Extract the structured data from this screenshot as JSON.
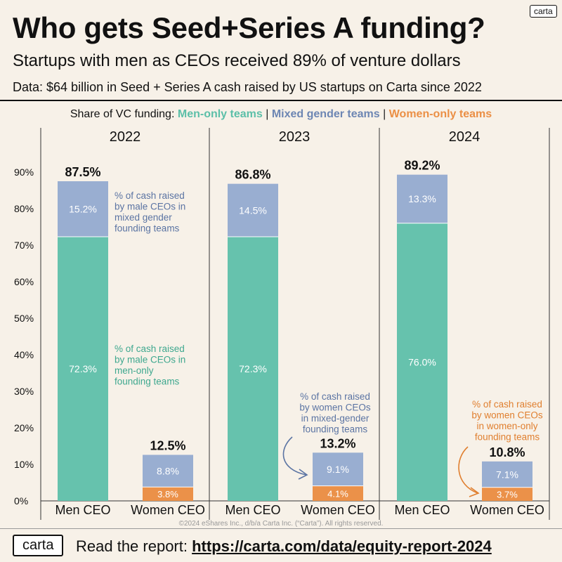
{
  "header": {
    "logo_small": "carta",
    "title": "Who gets Seed+Series A funding?",
    "subtitle": "Startups with men as CEOs received 89% of venture dollars",
    "data_note": "Data: $64 billion in Seed + Series A cash raised by US startups on Carta since 2022"
  },
  "legend": {
    "prefix": "Share of VC funding:",
    "men_only": "Men-only teams",
    "sep1": "|",
    "mixed": "Mixed gender teams",
    "sep2": "|",
    "women_only": "Women-only teams"
  },
  "colors": {
    "men_only": "#66c2ad",
    "mixed": "#99aed1",
    "women_only": "#eb9149",
    "annotation_men": "#3fa88f",
    "annotation_mixed": "#5b74a3",
    "annotation_women": "#e07f2f"
  },
  "chart_data": {
    "type": "bar",
    "stacked": true,
    "ylim": [
      0,
      90
    ],
    "yticks": [
      "0%",
      "10%",
      "20%",
      "30%",
      "40%",
      "50%",
      "60%",
      "70%",
      "80%",
      "90%"
    ],
    "yticks_values": [
      0,
      10,
      20,
      30,
      40,
      50,
      60,
      70,
      80,
      90
    ],
    "grid": false,
    "legend_position": "top-center",
    "panels": [
      {
        "year": "2022",
        "bars": [
          {
            "category": "Men CEO",
            "total_label": "87.5%",
            "segments": [
              {
                "series": "men_only",
                "value": 72.3,
                "label": "72.3%"
              },
              {
                "series": "mixed",
                "value": 15.2,
                "label": "15.2%"
              }
            ]
          },
          {
            "category": "Women CEO",
            "total_label": "12.5%",
            "segments": [
              {
                "series": "women_only",
                "value": 3.8,
                "label": "3.8%"
              },
              {
                "series": "mixed",
                "value": 8.8,
                "label": "8.8%"
              }
            ]
          }
        ]
      },
      {
        "year": "2023",
        "bars": [
          {
            "category": "Men CEO",
            "total_label": "86.8%",
            "segments": [
              {
                "series": "men_only",
                "value": 72.3,
                "label": "72.3%"
              },
              {
                "series": "mixed",
                "value": 14.5,
                "label": "14.5%"
              }
            ]
          },
          {
            "category": "Women CEO",
            "total_label": "13.2%",
            "segments": [
              {
                "series": "women_only",
                "value": 4.1,
                "label": "4.1%"
              },
              {
                "series": "mixed",
                "value": 9.1,
                "label": "9.1%"
              }
            ]
          }
        ]
      },
      {
        "year": "2024",
        "bars": [
          {
            "category": "Men CEO",
            "total_label": "89.2%",
            "segments": [
              {
                "series": "men_only",
                "value": 76.0,
                "label": "76.0%"
              },
              {
                "series": "mixed",
                "value": 13.3,
                "label": "13.3%"
              }
            ]
          },
          {
            "category": "Women CEO",
            "total_label": "10.8%",
            "segments": [
              {
                "series": "women_only",
                "value": 3.7,
                "label": "3.7%"
              },
              {
                "series": "mixed",
                "value": 7.1,
                "label": "7.1%"
              }
            ]
          }
        ]
      }
    ],
    "annotations": [
      {
        "color_key": "annotation_mixed",
        "lines": [
          "% of cash raised",
          "by male CEOs in",
          "mixed gender",
          "founding teams"
        ]
      },
      {
        "color_key": "annotation_men",
        "lines": [
          "% of cash raised",
          "by male CEOs in",
          "men-only",
          "founding teams"
        ]
      },
      {
        "color_key": "annotation_mixed",
        "lines": [
          "% of cash raised",
          "by women CEOs",
          "in mixed-gender",
          "founding teams"
        ]
      },
      {
        "color_key": "annotation_women",
        "lines": [
          "% of cash raised",
          "by women CEOs",
          "in women-only",
          "founding teams"
        ]
      }
    ]
  },
  "footer": {
    "copyright": "©2024 eShares Inc., d/b/a Carta Inc. (“Carta”). All rights reserved.",
    "logo_big": "carta",
    "report_prefix": "Read the report:",
    "report_link": "https://carta.com/data/equity-report-2024"
  }
}
